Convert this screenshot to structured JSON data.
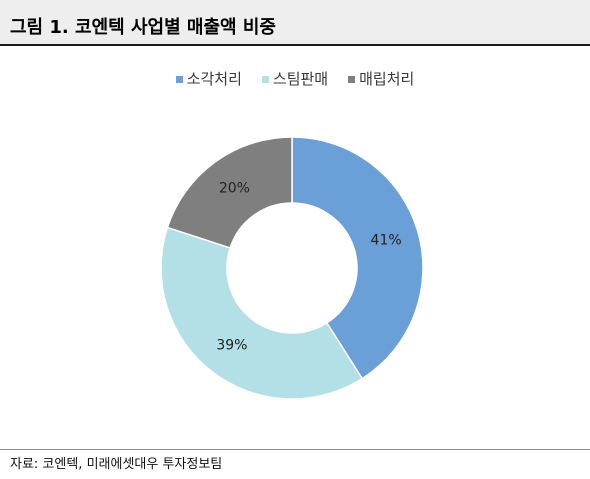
{
  "figure": {
    "source": "자료: 코엔텍, 미래에셋대우 투자정보팀"
  },
  "chart_data": {
    "type": "pie",
    "donut": true,
    "title": "그림 1. 코엔텍 사업별 매출액 비중",
    "categories": [
      "소각처리",
      "스팀판매",
      "매립처리"
    ],
    "values": [
      41,
      39,
      20
    ],
    "data_labels": [
      "41%",
      "39%",
      "20%"
    ],
    "colors": [
      "#6a9fd8",
      "#b2e0e6",
      "#7f7f7f"
    ],
    "legend": "top"
  }
}
